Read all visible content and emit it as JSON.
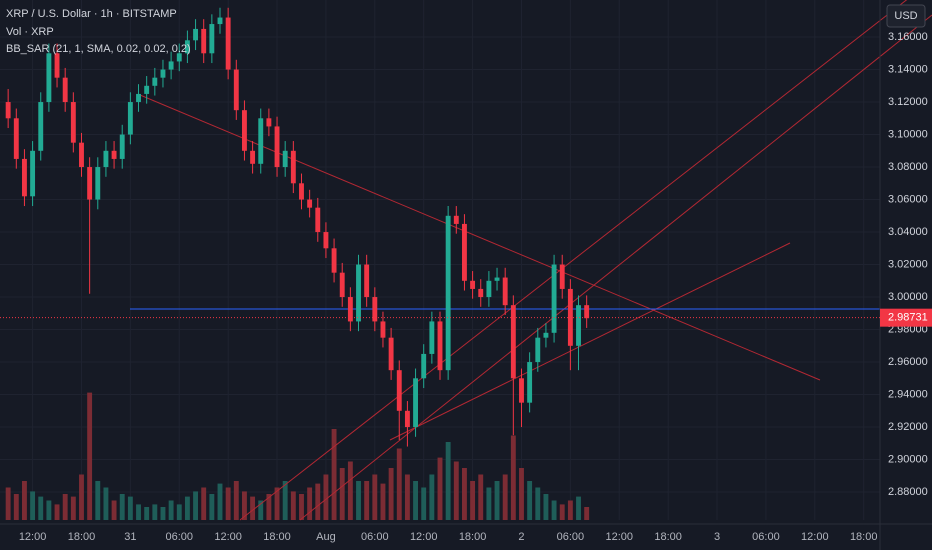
{
  "chart_data": {
    "type": "candlestick",
    "title": "XRP / U.S. Dollar · 1h · BITSTAMP",
    "volume_label": "Vol · XRP",
    "indicator_label": "BB_SAR (21, 1, SMA, 0.02, 0.02, 0.2)",
    "currency": "USD",
    "up_color": "#22ab94",
    "down_color": "#f23645",
    "volume_up_color": "#1f5e59",
    "volume_down_color": "#7c2c34",
    "open": [
      3.12,
      3.11,
      3.085,
      3.062,
      3.09,
      3.12,
      3.15,
      3.135,
      3.12,
      3.095,
      3.08,
      3.06,
      3.08,
      3.09,
      3.085,
      3.1,
      3.12,
      3.125,
      3.13,
      3.135,
      3.14,
      3.145,
      3.15,
      3.158,
      3.165,
      3.15,
      3.168,
      3.172,
      3.14,
      3.115,
      3.09,
      3.082,
      3.11,
      3.105,
      3.08,
      3.09,
      3.07,
      3.06,
      3.055,
      3.04,
      3.03,
      3.015,
      3.0,
      2.985,
      3.02,
      3.0,
      2.985,
      2.975,
      2.955,
      2.93,
      2.92,
      2.95,
      2.965,
      2.985,
      2.955,
      3.05,
      3.045,
      3.01,
      3.005,
      3.0,
      3.01,
      3.012,
      2.995,
      2.95,
      2.935,
      2.96,
      2.975,
      2.978,
      3.02,
      3.005,
      2.97,
      2.995
    ],
    "high": [
      3.128,
      3.116,
      3.091,
      3.096,
      3.126,
      3.156,
      3.156,
      3.141,
      3.126,
      3.101,
      3.086,
      3.086,
      3.096,
      3.096,
      3.106,
      3.126,
      3.131,
      3.136,
      3.141,
      3.146,
      3.151,
      3.156,
      3.164,
      3.171,
      3.171,
      3.174,
      3.178,
      3.178,
      3.146,
      3.121,
      3.096,
      3.116,
      3.116,
      3.111,
      3.096,
      3.096,
      3.076,
      3.066,
      3.061,
      3.046,
      3.036,
      3.021,
      3.006,
      3.026,
      3.026,
      3.006,
      2.991,
      2.981,
      2.961,
      2.936,
      2.956,
      2.971,
      2.991,
      2.991,
      3.056,
      3.056,
      3.051,
      3.016,
      3.011,
      3.016,
      3.018,
      3.018,
      3.001,
      2.956,
      2.966,
      2.981,
      2.984,
      3.026,
      3.026,
      3.011,
      3.001,
      3.001
    ],
    "low": [
      3.104,
      3.079,
      3.056,
      3.056,
      3.084,
      3.114,
      3.129,
      3.114,
      3.089,
      3.074,
      3.002,
      3.054,
      3.074,
      3.079,
      3.079,
      3.094,
      3.114,
      3.119,
      3.124,
      3.129,
      3.134,
      3.139,
      3.144,
      3.152,
      3.144,
      3.144,
      3.162,
      3.134,
      3.109,
      3.084,
      3.076,
      3.076,
      3.099,
      3.074,
      3.074,
      3.064,
      3.054,
      3.049,
      3.034,
      3.024,
      3.009,
      2.994,
      2.979,
      2.979,
      2.994,
      2.979,
      2.969,
      2.949,
      2.912,
      2.908,
      2.914,
      2.944,
      2.959,
      2.949,
      2.949,
      3.039,
      3.004,
      2.999,
      2.994,
      2.994,
      3.004,
      2.989,
      2.915,
      2.92,
      2.929,
      2.954,
      2.969,
      2.972,
      2.999,
      2.955,
      2.955,
      2.981
    ],
    "close": [
      3.11,
      3.085,
      3.062,
      3.09,
      3.12,
      3.15,
      3.135,
      3.12,
      3.095,
      3.08,
      3.06,
      3.08,
      3.09,
      3.085,
      3.1,
      3.12,
      3.125,
      3.13,
      3.135,
      3.14,
      3.145,
      3.15,
      3.158,
      3.165,
      3.15,
      3.168,
      3.172,
      3.14,
      3.115,
      3.09,
      3.082,
      3.11,
      3.105,
      3.08,
      3.09,
      3.07,
      3.06,
      3.055,
      3.04,
      3.03,
      3.015,
      3.0,
      2.985,
      3.02,
      3.0,
      2.985,
      2.975,
      2.955,
      2.93,
      2.92,
      2.95,
      2.965,
      2.985,
      2.955,
      3.05,
      3.045,
      3.01,
      3.005,
      3.0,
      3.01,
      3.012,
      2.995,
      2.95,
      2.935,
      2.96,
      2.975,
      2.978,
      3.02,
      3.005,
      2.97,
      2.995,
      2.987
    ],
    "volume": [
      25,
      20,
      30,
      22,
      18,
      15,
      12,
      20,
      18,
      35,
      98,
      30,
      25,
      15,
      20,
      18,
      12,
      10,
      12,
      10,
      15,
      12,
      18,
      22,
      25,
      20,
      28,
      25,
      30,
      22,
      18,
      15,
      20,
      25,
      30,
      22,
      20,
      25,
      28,
      35,
      70,
      40,
      45,
      30,
      30,
      35,
      28,
      40,
      55,
      35,
      30,
      25,
      35,
      48,
      60,
      45,
      40,
      30,
      35,
      25,
      30,
      35,
      65,
      40,
      30,
      25,
      20,
      15,
      12,
      15,
      18,
      10
    ],
    "vlim": [
      0,
      100
    ],
    "last_price": 2.98731,
    "xlim": [
      -1,
      107
    ],
    "xticks": [
      {
        "value": 3,
        "label": "12:00"
      },
      {
        "value": 9,
        "label": "18:00"
      },
      {
        "value": 15,
        "label": "31"
      },
      {
        "value": 21,
        "label": "06:00"
      },
      {
        "value": 27,
        "label": "12:00"
      },
      {
        "value": 33,
        "label": "18:00"
      },
      {
        "value": 39,
        "label": "Aug"
      },
      {
        "value": 45,
        "label": "06:00"
      },
      {
        "value": 51,
        "label": "12:00"
      },
      {
        "value": 57,
        "label": "18:00"
      },
      {
        "value": 63,
        "label": "2"
      },
      {
        "value": 69,
        "label": "06:00"
      },
      {
        "value": 75,
        "label": "12:00"
      },
      {
        "value": 81,
        "label": "18:00"
      },
      {
        "value": 87,
        "label": "3"
      },
      {
        "value": 93,
        "label": "06:00"
      },
      {
        "value": 99,
        "label": "12:00"
      },
      {
        "value": 105,
        "label": "18:00"
      }
    ],
    "ylim": [
      2.8628,
      3.1828
    ],
    "yticks": [
      {
        "value": 2.88,
        "label": "2.88000"
      },
      {
        "value": 2.9,
        "label": "2.90000"
      },
      {
        "value": 2.92,
        "label": "2.92000"
      },
      {
        "value": 2.94,
        "label": "2.94000"
      },
      {
        "value": 2.96,
        "label": "2.96000"
      },
      {
        "value": 2.98,
        "label": "2.98000"
      },
      {
        "value": 3.0,
        "label": "3.00000"
      },
      {
        "value": 3.02,
        "label": "3.02000"
      },
      {
        "value": 3.04,
        "label": "3.04000"
      },
      {
        "value": 3.06,
        "label": "3.06000"
      },
      {
        "value": 3.08,
        "label": "3.08000"
      },
      {
        "value": 3.1,
        "label": "3.10000"
      },
      {
        "value": 3.12,
        "label": "3.12000"
      },
      {
        "value": 3.14,
        "label": "3.14000"
      },
      {
        "value": 3.16,
        "label": "3.16000"
      }
    ],
    "grid": true
  }
}
